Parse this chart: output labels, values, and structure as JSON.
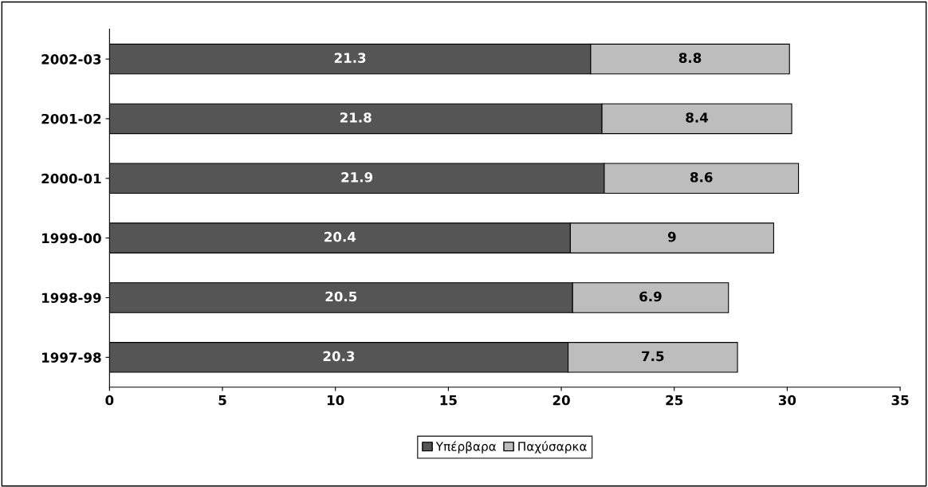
{
  "chart_data": {
    "type": "bar",
    "orientation": "horizontal",
    "stacked": true,
    "data_labels": true,
    "legend": "bottom",
    "grid": false,
    "categories": [
      "2002-03",
      "2001-02",
      "2000-01",
      "1999-00",
      "1998-99",
      "1997-98"
    ],
    "series": [
      {
        "name": "Υπέρβαρα",
        "color": "#555555",
        "values": [
          21.3,
          21.8,
          21.9,
          20.4,
          20.5,
          20.3
        ]
      },
      {
        "name": "Παχύσαρκα",
        "color": "#bdbdbd",
        "values": [
          8.8,
          8.4,
          8.6,
          9,
          6.9,
          7.5
        ]
      }
    ],
    "xlim": [
      0,
      35
    ],
    "xticks": [
      0,
      5,
      10,
      15,
      20,
      25,
      30,
      35
    ]
  }
}
